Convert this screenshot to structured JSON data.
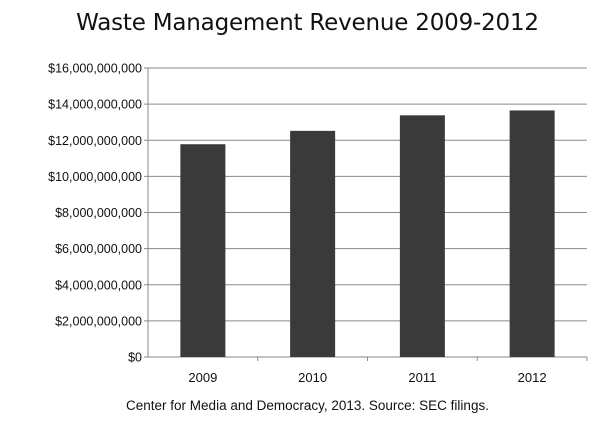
{
  "chart_data": {
    "type": "bar",
    "title": "Waste Management Revenue 2009-2012",
    "xlabel": "",
    "ylabel": "",
    "categories": [
      "2009",
      "2010",
      "2011",
      "2012"
    ],
    "values": [
      11780000000,
      12520000000,
      13380000000,
      13650000000
    ],
    "ylim": [
      0,
      16000000000
    ],
    "yticks": [
      0,
      2000000000,
      4000000000,
      6000000000,
      8000000000,
      10000000000,
      12000000000,
      14000000000,
      16000000000
    ],
    "ytick_labels": [
      "$0",
      "$2,000,000,000",
      "$4,000,000,000",
      "$6,000,000,000",
      "$8,000,000,000",
      "$10,000,000,000",
      "$12,000,000,000",
      "$14,000,000,000",
      "$16,000,000,000"
    ],
    "grid": "horizontal",
    "legend": "none",
    "bar_color": "#3a3a3a",
    "grid_color": "#8a8a8a",
    "note": "Center for Media and Democracy, 2013. Source: SEC filings."
  }
}
